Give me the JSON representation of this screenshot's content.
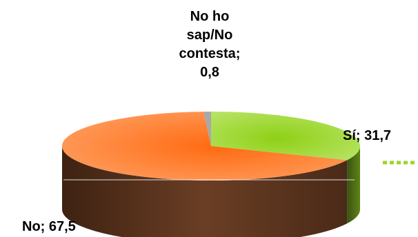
{
  "chart_data": {
    "type": "pie",
    "style": "3d",
    "title": "",
    "slices": [
      {
        "label": "Sí",
        "value": 31.7,
        "display": "Sí; 31,7",
        "color_top": "#9BD62C",
        "color_side": "#4E6E16"
      },
      {
        "label": "No",
        "value": 67.5,
        "display": "No; 67,5",
        "color_top": "#FF7A2A",
        "color_side": "#5C3520"
      },
      {
        "label": "No ho sap/No contesta",
        "value": 0.8,
        "display_lines": [
          "No ho",
          "sap/No",
          "contesta;",
          "0,8"
        ],
        "color_top": "#A8A8A8",
        "color_side": "#6E6E6E"
      }
    ],
    "legend": "none",
    "leader_line": {
      "style": "dotted",
      "color": "#9BD62C"
    }
  }
}
